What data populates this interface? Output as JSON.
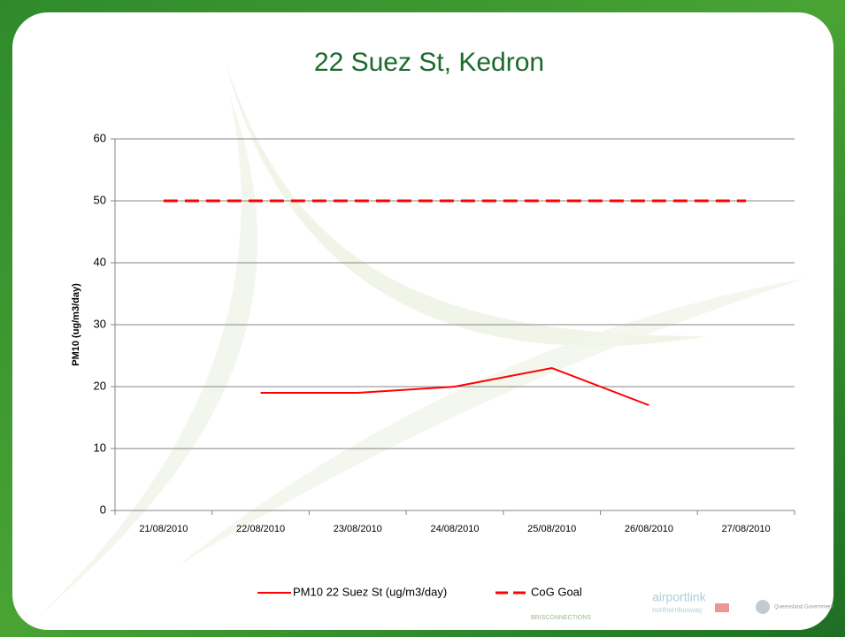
{
  "chart_data": {
    "type": "line",
    "title": "22 Suez St, Kedron",
    "y_label": "PM10 (ug/m3/day)",
    "categories": [
      "21/08/2010",
      "22/08/2010",
      "23/08/2010",
      "24/08/2010",
      "25/08/2010",
      "26/08/2010",
      "27/08/2010"
    ],
    "series": [
      {
        "name": "PM10 22 Suez St  (ug/m3/day)",
        "color": "#ff0000",
        "dashed": false,
        "values": [
          null,
          19,
          19,
          20,
          23,
          17,
          null
        ]
      },
      {
        "name": "CoG Goal",
        "color": "#ff0000",
        "dashed": true,
        "values": [
          50,
          50,
          50,
          50,
          50,
          50,
          50
        ]
      }
    ],
    "ylim": [
      0,
      60
    ],
    "yticks": [
      0,
      10,
      20,
      30,
      40,
      50,
      60
    ],
    "grid": true,
    "legend": "bottom"
  },
  "logos": [
    "BRISCONNECTIONS",
    "airportlink",
    "northernbusway",
    "Queensland Government"
  ]
}
